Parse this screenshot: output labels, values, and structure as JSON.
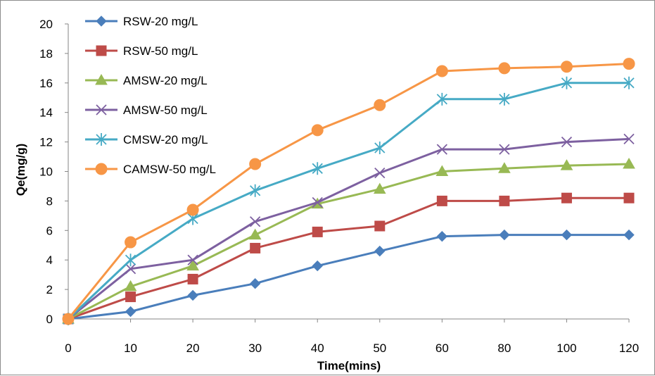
{
  "chart_data": {
    "type": "line",
    "title": "",
    "xlabel": "Time(mins)",
    "ylabel": "Qe(mg/g)",
    "categories": [
      "0",
      "10",
      "20",
      "30",
      "40",
      "50",
      "60",
      "80",
      "100",
      "120"
    ],
    "ylim": [
      0,
      20
    ],
    "yticks": [
      "0",
      "2",
      "4",
      "6",
      "8",
      "10",
      "12",
      "14",
      "16",
      "18",
      "20"
    ],
    "grid": false,
    "legend_position": "top-left",
    "series": [
      {
        "name": "RSW-20 mg/L",
        "color": "#4A7EBB",
        "marker": "diamond",
        "values": [
          0,
          0.5,
          1.6,
          2.4,
          3.6,
          4.6,
          5.6,
          5.7,
          5.7,
          5.7
        ]
      },
      {
        "name": "RSW-50 mg/L",
        "color": "#BE4B48",
        "marker": "square",
        "values": [
          0,
          1.5,
          2.7,
          4.8,
          5.9,
          6.3,
          8.0,
          8.0,
          8.2,
          8.2
        ]
      },
      {
        "name": "AMSW-20 mg/L",
        "color": "#98B954",
        "marker": "triangle",
        "values": [
          0,
          2.2,
          3.6,
          5.7,
          7.8,
          8.8,
          10.0,
          10.2,
          10.4,
          10.5
        ]
      },
      {
        "name": "AMSW-50 mg/L",
        "color": "#7D60A0",
        "marker": "x",
        "values": [
          0,
          3.4,
          4.0,
          6.6,
          7.9,
          9.9,
          11.5,
          11.5,
          12.0,
          12.2
        ]
      },
      {
        "name": "CMSW-20 mg/L",
        "color": "#46AAC5",
        "marker": "star",
        "values": [
          0,
          4.0,
          6.8,
          8.7,
          10.2,
          11.6,
          14.9,
          14.9,
          16.0,
          16.0
        ]
      },
      {
        "name": "CAMSW-50 mg/L",
        "color": "#F79646",
        "marker": "circle",
        "values": [
          0,
          5.2,
          7.4,
          10.5,
          12.8,
          14.5,
          16.8,
          17.0,
          17.1,
          17.3
        ]
      }
    ]
  }
}
